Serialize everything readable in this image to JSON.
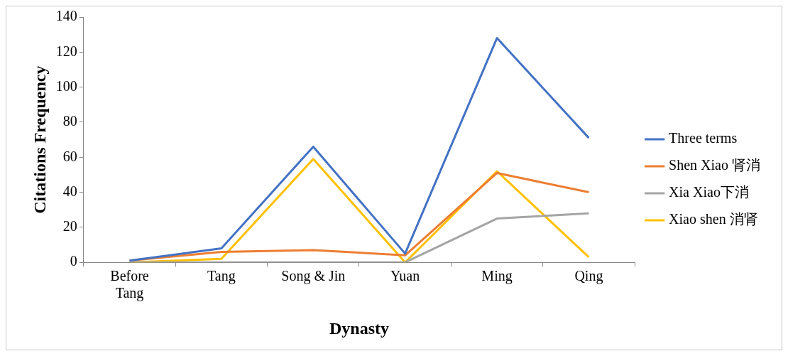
{
  "chart_data": {
    "type": "line",
    "xlabel": "Dynasty",
    "ylabel": "Citations Frequency",
    "categories": [
      "Before Tang",
      "Tang",
      "Song & Jin",
      "Yuan",
      "Ming",
      "Qing"
    ],
    "series": [
      {
        "name": "Three terms",
        "color": "#4472c4",
        "values": [
          1,
          8,
          66,
          5,
          128,
          71
        ]
      },
      {
        "name": "Shen Xiao 肾消",
        "color": "#ed7d31",
        "values": [
          1,
          6,
          7,
          4,
          51,
          40
        ]
      },
      {
        "name": "Xia Xiao下消",
        "color": "#a5a5a5",
        "values": [
          0,
          0,
          0,
          0,
          25,
          28
        ]
      },
      {
        "name": "Xiao shen 消肾",
        "color": "#ffc000",
        "values": [
          0,
          2,
          59,
          0,
          52,
          3
        ]
      }
    ],
    "ylim": [
      0,
      140
    ],
    "yticks": [
      0,
      20,
      40,
      60,
      80,
      100,
      120,
      140
    ],
    "grid": false,
    "legend": "right",
    "marker": "none",
    "line_style": "solid"
  }
}
